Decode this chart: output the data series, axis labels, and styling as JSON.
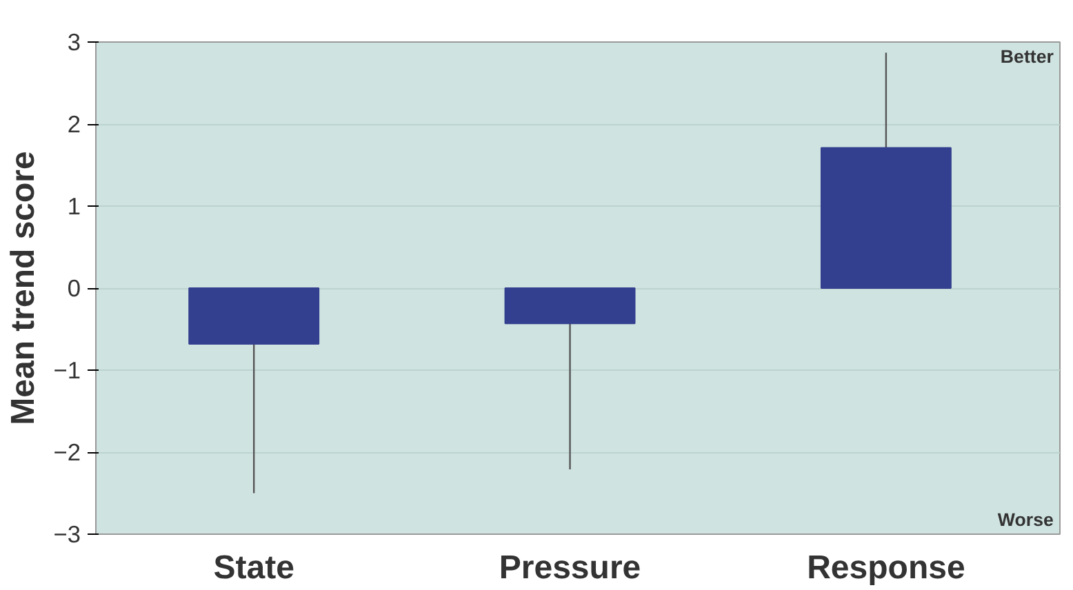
{
  "chart_data": {
    "type": "bar",
    "ylabel": "Mean trend score",
    "categories": [
      "State",
      "Pressure",
      "Response"
    ],
    "values": [
      -0.68,
      -0.43,
      1.71
    ],
    "errors": [
      [
        -2.5,
        -0.68
      ],
      [
        -2.21,
        -0.43
      ],
      [
        1.71,
        2.87
      ]
    ],
    "color": "#333f8f",
    "ylim": [
      -3,
      3
    ],
    "yticks": [
      -3,
      -2,
      -1,
      0,
      1,
      2,
      3
    ],
    "grid": "y",
    "annotations": [
      "Better",
      "Worse"
    ]
  }
}
